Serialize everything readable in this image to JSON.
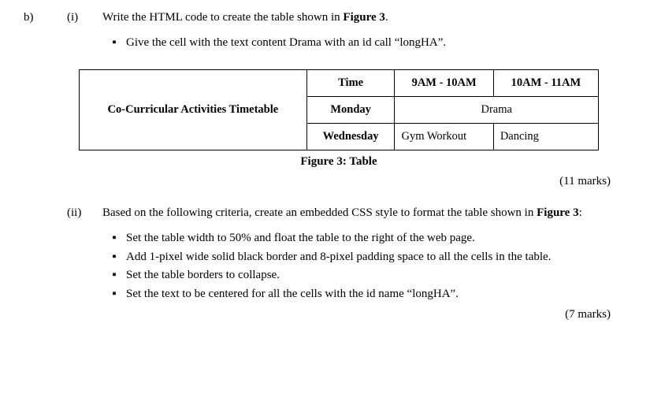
{
  "question": {
    "part_label": "b)",
    "sub1_label": "(i)",
    "sub1_text_pre": "Write the HTML code to create the table shown in ",
    "sub1_fig_ref": "Figure 3",
    "sub1_text_post": ".",
    "sub1_bullet1": "Give the cell with the text content Drama with an id call “longHA”.",
    "sub2_label": "(ii)",
    "sub2_text_pre": "Based on the following criteria, create an embedded CSS style to format the table shown in ",
    "sub2_fig_ref": "Figure 3",
    "sub2_text_post": ":",
    "sub2_bullets": [
      "Set the table width to 50% and float the table to the right of the web page.",
      "Add 1-pixel wide solid black border and 8-pixel padding space to all the cells in the table.",
      "Set the table borders to collapse.",
      "Set the text to be centered for all the cells with the id name “longHA”."
    ],
    "marks1": "(11 marks)",
    "marks2": "(7 marks)"
  },
  "table": {
    "header_main": "Co-Curricular Activities Timetable",
    "h_time": "Time",
    "h_slot1": "9AM - 10AM",
    "h_slot2": "10AM - 11AM",
    "r1_day": "Monday",
    "r1_merged": "Drama",
    "r2_day": "Wednesday",
    "r2_c1": "Gym Workout",
    "r2_c2": "Dancing"
  },
  "caption": "Figure 3: Table",
  "bullet_glyph": "▪"
}
